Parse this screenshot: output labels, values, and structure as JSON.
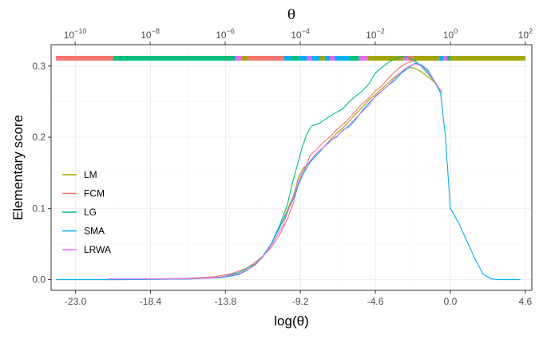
{
  "chart_data": {
    "type": "line",
    "xlabel": "log(θ)",
    "ylabel": "Elementary score",
    "top_axis_title": "θ",
    "xlim": [
      -24.5,
      5.0
    ],
    "ylim": [
      -0.015,
      0.33
    ],
    "x_ticks": [
      -23.0,
      -18.4,
      -13.8,
      -9.2,
      -4.6,
      0.0,
      4.6
    ],
    "x_tick_labels": [
      "-23.0",
      "-18.4",
      "-13.8",
      "-9.2",
      "-4.6",
      "0.0",
      "4.6"
    ],
    "y_ticks": [
      0.0,
      0.1,
      0.2,
      0.3
    ],
    "y_tick_labels": [
      "0.0",
      "0.1",
      "0.2",
      "0.3"
    ],
    "top_ticks": [
      {
        "base": "10",
        "exp": "−10",
        "value": -23.026
      },
      {
        "base": "10",
        "exp": "−8",
        "value": -18.421
      },
      {
        "base": "10",
        "exp": "−6",
        "value": -13.816
      },
      {
        "base": "10",
        "exp": "−4",
        "value": -9.21
      },
      {
        "base": "10",
        "exp": "−2",
        "value": -4.605
      },
      {
        "base": "10",
        "exp": "0",
        "value": 0.0
      },
      {
        "base": "10",
        "exp": "2",
        "value": 4.605
      }
    ],
    "legend_position": "left",
    "series": [
      {
        "name": "LM",
        "color": "#A3A500",
        "points": [
          [
            -24.2,
            0
          ],
          [
            -20,
            0
          ],
          [
            -16,
            0.001
          ],
          [
            -14,
            0.003
          ],
          [
            -13,
            0.008
          ],
          [
            -12,
            0.02
          ],
          [
            -11.5,
            0.032
          ],
          [
            -11,
            0.05
          ],
          [
            -10.5,
            0.072
          ],
          [
            -10,
            0.098
          ],
          [
            -9.6,
            0.12
          ],
          [
            -9.3,
            0.145
          ],
          [
            -9.0,
            0.157
          ],
          [
            -8.5,
            0.168
          ],
          [
            -8.0,
            0.18
          ],
          [
            -7.5,
            0.193
          ],
          [
            -7.0,
            0.205
          ],
          [
            -6.5,
            0.215
          ],
          [
            -6.0,
            0.228
          ],
          [
            -5.5,
            0.24
          ],
          [
            -5.0,
            0.252
          ],
          [
            -4.5,
            0.262
          ],
          [
            -4.0,
            0.272
          ],
          [
            -3.5,
            0.283
          ],
          [
            -3.0,
            0.292
          ],
          [
            -2.5,
            0.298
          ],
          [
            -2.2,
            0.297
          ],
          [
            -1.8,
            0.292
          ],
          [
            -1.4,
            0.285
          ],
          [
            -1.0,
            0.278
          ],
          [
            -0.5,
            0.262
          ]
        ]
      },
      {
        "name": "FCM",
        "color": "#F8766D",
        "points": [
          [
            -21,
            0.001
          ],
          [
            -18,
            0.001
          ],
          [
            -16,
            0.002
          ],
          [
            -14.5,
            0.004
          ],
          [
            -13.5,
            0.008
          ],
          [
            -12.5,
            0.016
          ],
          [
            -12,
            0.024
          ],
          [
            -11.5,
            0.033
          ],
          [
            -11,
            0.045
          ],
          [
            -10.5,
            0.062
          ],
          [
            -10,
            0.085
          ],
          [
            -9.6,
            0.11
          ],
          [
            -9.3,
            0.138
          ],
          [
            -9.0,
            0.15
          ],
          [
            -8.6,
            0.175
          ],
          [
            -8.2,
            0.183
          ],
          [
            -7.8,
            0.193
          ],
          [
            -7.4,
            0.2
          ],
          [
            -7.0,
            0.21
          ],
          [
            -6.5,
            0.22
          ],
          [
            -6.0,
            0.232
          ],
          [
            -5.5,
            0.245
          ],
          [
            -5.0,
            0.255
          ],
          [
            -4.6,
            0.265
          ],
          [
            -4.2,
            0.272
          ],
          [
            -3.8,
            0.283
          ],
          [
            -3.4,
            0.292
          ],
          [
            -3.0,
            0.3
          ],
          [
            -2.6,
            0.305
          ],
          [
            -2.2,
            0.307
          ],
          [
            -1.8,
            0.3
          ],
          [
            -1.4,
            0.29
          ],
          [
            -1.0,
            0.279
          ],
          [
            -0.5,
            0.262
          ]
        ]
      },
      {
        "name": "LG",
        "color": "#00BF7D",
        "points": [
          [
            -20.5,
            0.001
          ],
          [
            -17,
            0.001
          ],
          [
            -15,
            0.002
          ],
          [
            -14,
            0.004
          ],
          [
            -13,
            0.01
          ],
          [
            -12,
            0.022
          ],
          [
            -11.5,
            0.033
          ],
          [
            -11,
            0.05
          ],
          [
            -10.5,
            0.075
          ],
          [
            -10,
            0.105
          ],
          [
            -9.7,
            0.135
          ],
          [
            -9.4,
            0.16
          ],
          [
            -9.1,
            0.185
          ],
          [
            -8.8,
            0.205
          ],
          [
            -8.5,
            0.216
          ],
          [
            -8.0,
            0.22
          ],
          [
            -7.5,
            0.228
          ],
          [
            -7.0,
            0.235
          ],
          [
            -6.6,
            0.24
          ],
          [
            -6.2,
            0.25
          ],
          [
            -5.8,
            0.258
          ],
          [
            -5.4,
            0.265
          ],
          [
            -5.0,
            0.275
          ],
          [
            -4.6,
            0.29
          ],
          [
            -4.2,
            0.298
          ],
          [
            -3.8,
            0.305
          ],
          [
            -3.4,
            0.31
          ],
          [
            -3.0,
            0.313
          ],
          [
            -2.6,
            0.312
          ],
          [
            -2.2,
            0.308
          ],
          [
            -1.8,
            0.3
          ],
          [
            -1.4,
            0.29
          ],
          [
            -1.0,
            0.279
          ],
          [
            -0.5,
            0.262
          ]
        ]
      },
      {
        "name": "SMA",
        "color": "#00B0F6",
        "points": [
          [
            -24.2,
            0
          ],
          [
            -20,
            0
          ],
          [
            -16,
            0.001
          ],
          [
            -14,
            0.003
          ],
          [
            -13,
            0.007
          ],
          [
            -12.5,
            0.013
          ],
          [
            -12,
            0.021
          ],
          [
            -11.5,
            0.033
          ],
          [
            -11,
            0.05
          ],
          [
            -10.5,
            0.072
          ],
          [
            -10,
            0.095
          ],
          [
            -9.6,
            0.115
          ],
          [
            -9.3,
            0.135
          ],
          [
            -9.0,
            0.15
          ],
          [
            -8.6,
            0.165
          ],
          [
            -8.2,
            0.175
          ],
          [
            -7.8,
            0.185
          ],
          [
            -7.4,
            0.195
          ],
          [
            -7.0,
            0.2
          ],
          [
            -6.6,
            0.21
          ],
          [
            -6.2,
            0.215
          ],
          [
            -5.8,
            0.225
          ],
          [
            -5.4,
            0.238
          ],
          [
            -5.0,
            0.248
          ],
          [
            -4.6,
            0.257
          ],
          [
            -4.2,
            0.265
          ],
          [
            -3.8,
            0.273
          ],
          [
            -3.4,
            0.28
          ],
          [
            -3.0,
            0.29
          ],
          [
            -2.6,
            0.297
          ],
          [
            -2.2,
            0.304
          ],
          [
            -1.8,
            0.302
          ],
          [
            -1.4,
            0.295
          ],
          [
            -1.0,
            0.28
          ],
          [
            -0.6,
            0.262
          ],
          [
            -0.3,
            0.2
          ],
          [
            0.0,
            0.1
          ],
          [
            0.5,
            0.08
          ],
          [
            1.0,
            0.055
          ],
          [
            1.5,
            0.03
          ],
          [
            2.0,
            0.008
          ],
          [
            2.5,
            0.001
          ],
          [
            3.0,
            0
          ],
          [
            4.0,
            0
          ],
          [
            4.3,
            0
          ]
        ]
      },
      {
        "name": "LRWA",
        "color": "#E76BF3",
        "points": [
          [
            -21,
            0.001
          ],
          [
            -17,
            0.001
          ],
          [
            -15,
            0.002
          ],
          [
            -14,
            0.004
          ],
          [
            -13,
            0.008
          ],
          [
            -12.3,
            0.016
          ],
          [
            -11.8,
            0.025
          ],
          [
            -11.3,
            0.038
          ],
          [
            -10.8,
            0.055
          ],
          [
            -10.3,
            0.075
          ],
          [
            -9.9,
            0.1
          ],
          [
            -9.5,
            0.125
          ],
          [
            -9.2,
            0.145
          ],
          [
            -8.9,
            0.158
          ],
          [
            -8.5,
            0.17
          ],
          [
            -8.1,
            0.18
          ],
          [
            -7.7,
            0.187
          ],
          [
            -7.3,
            0.196
          ],
          [
            -6.9,
            0.203
          ],
          [
            -6.5,
            0.211
          ],
          [
            -6.0,
            0.222
          ],
          [
            -5.5,
            0.234
          ],
          [
            -5.0,
            0.245
          ],
          [
            -4.6,
            0.258
          ],
          [
            -4.2,
            0.265
          ],
          [
            -3.8,
            0.273
          ],
          [
            -3.4,
            0.283
          ],
          [
            -3.0,
            0.292
          ],
          [
            -2.6,
            0.299
          ],
          [
            -2.2,
            0.303
          ],
          [
            -1.8,
            0.301
          ],
          [
            -1.4,
            0.293
          ],
          [
            -1.0,
            0.28
          ],
          [
            -0.5,
            0.262
          ]
        ]
      }
    ],
    "best_method_bar": [
      {
        "from": -24.2,
        "to": -20.7,
        "method": "FCM"
      },
      {
        "from": -20.7,
        "to": -13.2,
        "method": "LG"
      },
      {
        "from": -13.2,
        "to": -12.8,
        "method": "LRWA"
      },
      {
        "from": -12.8,
        "to": -12.4,
        "method": "LM"
      },
      {
        "from": -12.4,
        "to": -10.2,
        "method": "FCM"
      },
      {
        "from": -10.2,
        "to": -9.8,
        "method": "SMA"
      },
      {
        "from": -9.8,
        "to": -9.3,
        "method": "LG"
      },
      {
        "from": -9.3,
        "to": -8.8,
        "method": "SMA"
      },
      {
        "from": -8.8,
        "to": -8.5,
        "method": "LRWA"
      },
      {
        "from": -8.5,
        "to": -8.0,
        "method": "SMA"
      },
      {
        "from": -8.0,
        "to": -7.7,
        "method": "LM"
      },
      {
        "from": -7.7,
        "to": -7.4,
        "method": "SMA"
      },
      {
        "from": -7.4,
        "to": -7.1,
        "method": "LRWA"
      },
      {
        "from": -7.1,
        "to": -6.2,
        "method": "SMA"
      },
      {
        "from": -6.2,
        "to": -5.6,
        "method": "LG"
      },
      {
        "from": -5.6,
        "to": -5.1,
        "method": "LRWA"
      },
      {
        "from": -5.1,
        "to": -2.9,
        "method": "LM"
      },
      {
        "from": -2.9,
        "to": -2.6,
        "method": "LRWA"
      },
      {
        "from": -2.6,
        "to": -2.3,
        "method": "FCM"
      },
      {
        "from": -2.3,
        "to": -0.7,
        "method": "LM"
      },
      {
        "from": -0.7,
        "to": -0.4,
        "method": "SMA"
      },
      {
        "from": -0.4,
        "to": -0.2,
        "method": "LRWA"
      },
      {
        "from": -0.2,
        "to": 0.0,
        "method": "LG"
      },
      {
        "from": 0.0,
        "to": 4.6,
        "method": "LM"
      }
    ]
  }
}
